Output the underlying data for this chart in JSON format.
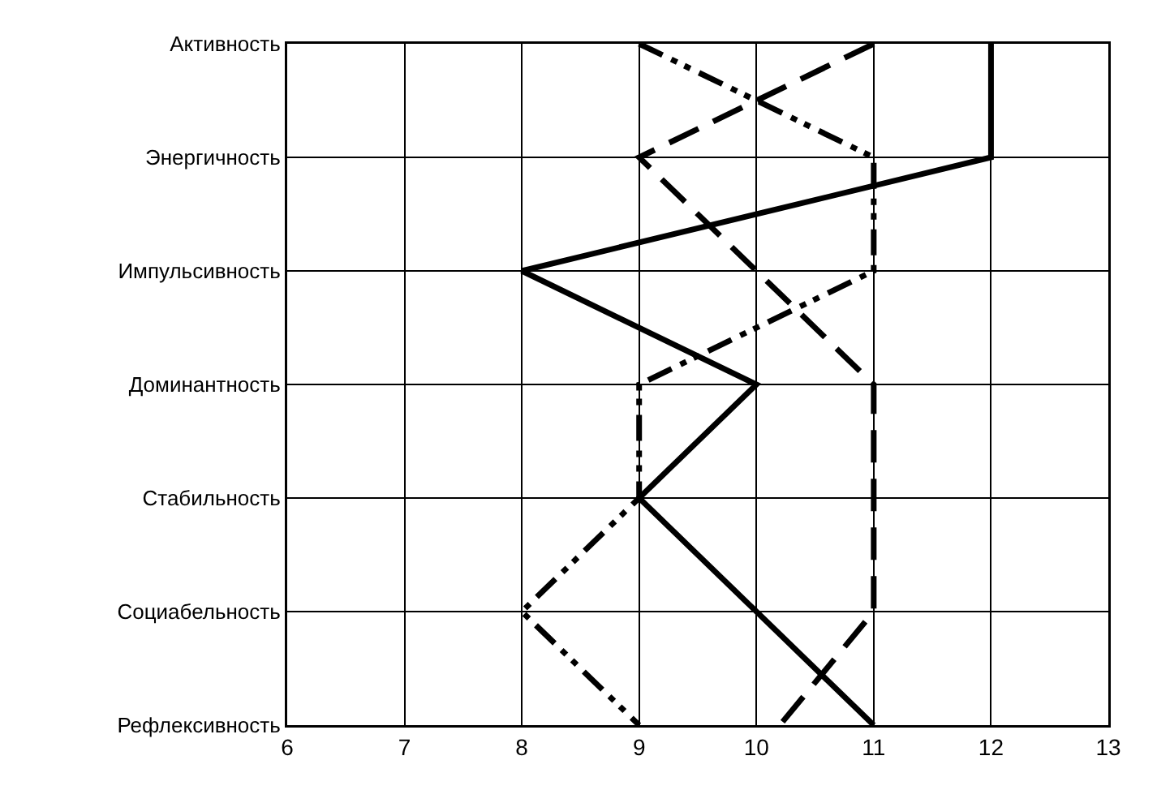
{
  "chart_data": {
    "type": "line",
    "orientation": "horizontal",
    "categories": [
      "Активность",
      "Энергичность",
      "Импульсивность",
      "Доминантность",
      "Стабильность",
      "Социабельность",
      "Рефлексивность"
    ],
    "series": [
      {
        "color": "#000000",
        "line_style": "solid",
        "values": [
          12,
          12,
          8,
          10,
          9,
          10,
          11
        ]
      },
      {
        "color": "#000000",
        "line_style": "dashed",
        "values": [
          11,
          9,
          10,
          11,
          11,
          11,
          10.2
        ]
      },
      {
        "color": "#000000",
        "line_style": "dashdot",
        "values": [
          9,
          11,
          11,
          9,
          9,
          8,
          9
        ]
      }
    ],
    "xlim": [
      6,
      13
    ],
    "xticks": [
      6,
      7,
      8,
      9,
      10,
      11,
      12,
      13
    ],
    "grid": true,
    "marker": "none"
  }
}
